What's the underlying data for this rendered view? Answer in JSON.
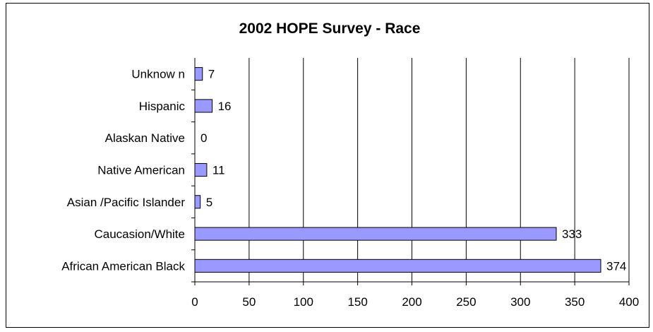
{
  "chart_data": {
    "type": "bar",
    "orientation": "horizontal",
    "title": "2002 HOPE Survey  - Race",
    "xlabel": "",
    "ylabel": "",
    "categories": [
      "African American Black",
      "Caucasion/White",
      "Asian /Pacific Islander",
      "Native American",
      "Alaskan Native",
      "Hispanic",
      "Unknow n"
    ],
    "values": [
      374,
      333,
      5,
      11,
      0,
      16,
      7
    ],
    "xlim": [
      0,
      400
    ],
    "xticks": [
      "0",
      "50",
      "100",
      "150",
      "200",
      "250",
      "300",
      "350",
      "400"
    ],
    "grid": "vertical",
    "legend": "none",
    "colors": {
      "bar_fill": "#9999ff",
      "bar_stroke": "#000000",
      "grid": "#000000"
    }
  }
}
